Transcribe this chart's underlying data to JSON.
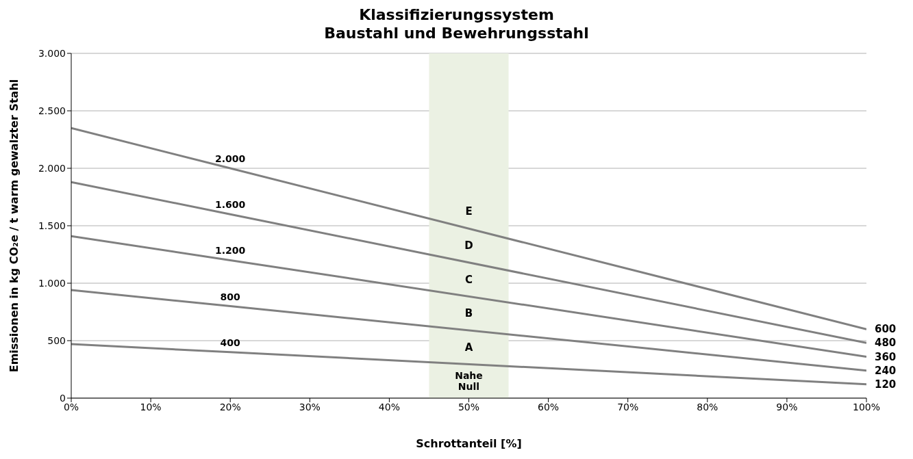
{
  "chart_data": {
    "type": "line",
    "title": "Klassifizierungssystem\nBaustahl und Bewehrungsstahl",
    "xlabel": "Schrottanteil [%]",
    "ylabel": "Emissionen in kg CO₂e / t warm gewalzter Stahl",
    "x": [
      0,
      20,
      100
    ],
    "series": [
      {
        "color": "#808080",
        "values": [
          2350,
          2000,
          600
        ],
        "value_labels": [
          null,
          "2.000",
          "600"
        ]
      },
      {
        "color": "#808080",
        "values": [
          1880,
          1600,
          480
        ],
        "value_labels": [
          null,
          "1.600",
          "480"
        ]
      },
      {
        "color": "#808080",
        "values": [
          1410,
          1200,
          360
        ],
        "value_labels": [
          null,
          "1.200",
          "360"
        ]
      },
      {
        "color": "#808080",
        "values": [
          940,
          800,
          240
        ],
        "value_labels": [
          null,
          "800",
          "240"
        ]
      },
      {
        "color": "#808080",
        "values": [
          470,
          400,
          120
        ],
        "value_labels": [
          null,
          "400",
          "120"
        ]
      }
    ],
    "xlim": [
      0,
      100
    ],
    "xticks": [
      {
        "value": 0,
        "label": "0%"
      },
      {
        "value": 10,
        "label": "10%"
      },
      {
        "value": 20,
        "label": "20%"
      },
      {
        "value": 30,
        "label": "30%"
      },
      {
        "value": 40,
        "label": "40%"
      },
      {
        "value": 50,
        "label": "50%"
      },
      {
        "value": 60,
        "label": "60%"
      },
      {
        "value": 70,
        "label": "70%"
      },
      {
        "value": 80,
        "label": "80%"
      },
      {
        "value": 90,
        "label": "90%"
      },
      {
        "value": 100,
        "label": "100%"
      }
    ],
    "ylim": [
      0,
      3000
    ],
    "yticks": [
      0,
      500,
      {
        "value": 1000,
        "label": "1.000"
      },
      {
        "value": 1500,
        "label": "1.500"
      },
      {
        "value": 2000,
        "label": "2.000"
      },
      {
        "value": 2500,
        "label": "2.500"
      },
      {
        "value": 3000,
        "label": "3.000"
      }
    ],
    "grid": "y",
    "legend": false,
    "marker": "none",
    "line_style": "solid",
    "bands": [
      {
        "axis": "x",
        "from": 45,
        "to": 55,
        "color": "#ebf1e3"
      }
    ],
    "annotations": [
      "E",
      "D",
      "C",
      "B",
      "A",
      "Nahe Null"
    ]
  }
}
